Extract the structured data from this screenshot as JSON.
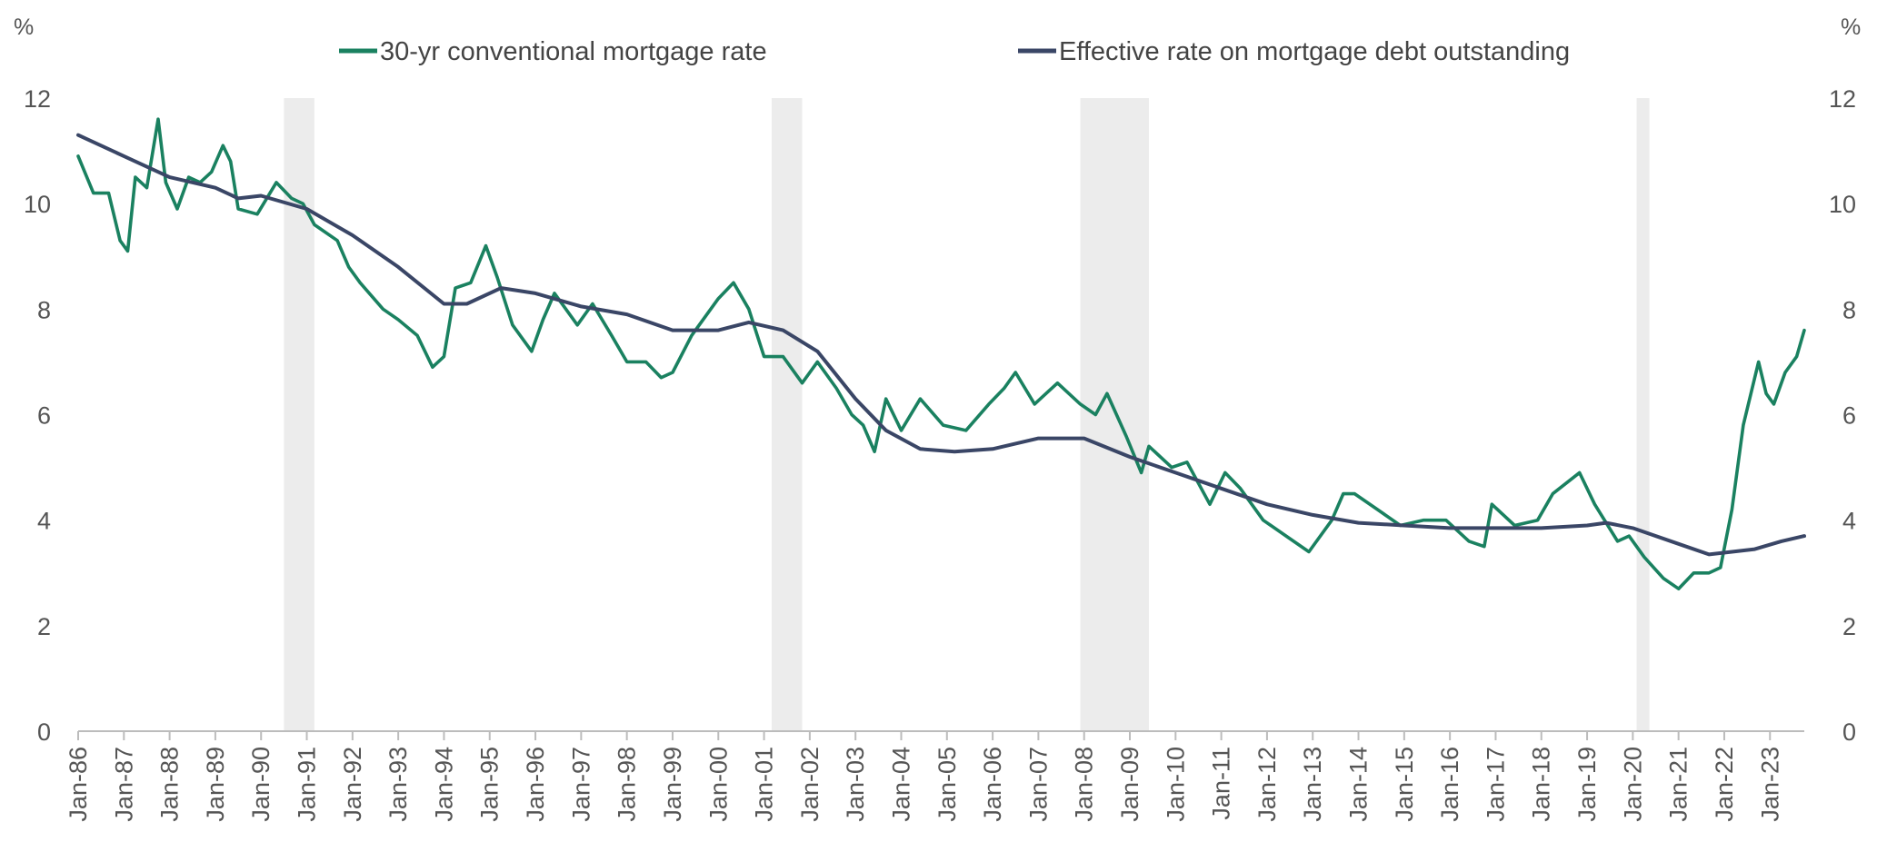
{
  "chart_data": {
    "type": "line",
    "title": "",
    "xlabel": "",
    "left_axis_unit": "%",
    "right_axis_unit": "%",
    "ylim": [
      0,
      12
    ],
    "y_ticks": [
      "0",
      "2",
      "4",
      "6",
      "8",
      "10",
      "12"
    ],
    "x_range": [
      "1986-01",
      "2023-10"
    ],
    "x_tick_labels": [
      "Jan-86",
      "Jan-87",
      "Jan-88",
      "Jan-89",
      "Jan-90",
      "Jan-91",
      "Jan-92",
      "Jan-93",
      "Jan-94",
      "Jan-95",
      "Jan-96",
      "Jan-97",
      "Jan-98",
      "Jan-99",
      "Jan-00",
      "Jan-01",
      "Jan-02",
      "Jan-03",
      "Jan-04",
      "Jan-05",
      "Jan-06",
      "Jan-07",
      "Jan-08",
      "Jan-09",
      "Jan-10",
      "Jan-11",
      "Jan-12",
      "Jan-13",
      "Jan-14",
      "Jan-15",
      "Jan-16",
      "Jan-17",
      "Jan-18",
      "Jan-19",
      "Jan-20",
      "Jan-21",
      "Jan-22",
      "Jan-23"
    ],
    "grid": false,
    "legend_position": "top",
    "shaded_periods": [
      {
        "start": "1990-07",
        "end": "1991-03"
      },
      {
        "start": "2001-03",
        "end": "2001-11"
      },
      {
        "start": "2007-12",
        "end": "2009-06"
      },
      {
        "start": "2020-02",
        "end": "2020-04"
      }
    ],
    "shade_color": "#ececec",
    "series": [
      {
        "name": "30-yr conventional mortgage rate",
        "color": "#1a8160",
        "points": [
          [
            "1986-01",
            10.9
          ],
          [
            "1986-05",
            10.2
          ],
          [
            "1986-09",
            10.2
          ],
          [
            "1986-12",
            9.3
          ],
          [
            "1987-02",
            9.1
          ],
          [
            "1987-04",
            10.5
          ],
          [
            "1987-07",
            10.3
          ],
          [
            "1987-10",
            11.6
          ],
          [
            "1987-12",
            10.4
          ],
          [
            "1988-03",
            9.9
          ],
          [
            "1988-06",
            10.5
          ],
          [
            "1988-09",
            10.4
          ],
          [
            "1988-12",
            10.6
          ],
          [
            "1989-03",
            11.1
          ],
          [
            "1989-05",
            10.8
          ],
          [
            "1989-07",
            9.9
          ],
          [
            "1989-12",
            9.8
          ],
          [
            "1990-05",
            10.4
          ],
          [
            "1990-09",
            10.1
          ],
          [
            "1990-12",
            10.0
          ],
          [
            "1991-03",
            9.6
          ],
          [
            "1991-09",
            9.3
          ],
          [
            "1991-12",
            8.8
          ],
          [
            "1992-03",
            8.5
          ],
          [
            "1992-09",
            8.0
          ],
          [
            "1993-01",
            7.8
          ],
          [
            "1993-06",
            7.5
          ],
          [
            "1993-10",
            6.9
          ],
          [
            "1994-01",
            7.1
          ],
          [
            "1994-04",
            8.4
          ],
          [
            "1994-08",
            8.5
          ],
          [
            "1994-12",
            9.2
          ],
          [
            "1995-03",
            8.6
          ],
          [
            "1995-07",
            7.7
          ],
          [
            "1995-12",
            7.2
          ],
          [
            "1996-03",
            7.8
          ],
          [
            "1996-06",
            8.3
          ],
          [
            "1996-12",
            7.7
          ],
          [
            "1997-04",
            8.1
          ],
          [
            "1997-09",
            7.5
          ],
          [
            "1998-01",
            7.0
          ],
          [
            "1998-06",
            7.0
          ],
          [
            "1998-10",
            6.7
          ],
          [
            "1999-01",
            6.8
          ],
          [
            "1999-06",
            7.5
          ],
          [
            "2000-01",
            8.2
          ],
          [
            "2000-05",
            8.5
          ],
          [
            "2000-09",
            8.0
          ],
          [
            "2001-01",
            7.1
          ],
          [
            "2001-06",
            7.1
          ],
          [
            "2001-11",
            6.6
          ],
          [
            "2002-03",
            7.0
          ],
          [
            "2002-08",
            6.5
          ],
          [
            "2002-12",
            6.0
          ],
          [
            "2003-03",
            5.8
          ],
          [
            "2003-06",
            5.3
          ],
          [
            "2003-09",
            6.3
          ],
          [
            "2004-01",
            5.7
          ],
          [
            "2004-06",
            6.3
          ],
          [
            "2004-12",
            5.8
          ],
          [
            "2005-06",
            5.7
          ],
          [
            "2005-12",
            6.2
          ],
          [
            "2006-04",
            6.5
          ],
          [
            "2006-07",
            6.8
          ],
          [
            "2006-12",
            6.2
          ],
          [
            "2007-06",
            6.6
          ],
          [
            "2007-12",
            6.2
          ],
          [
            "2008-04",
            6.0
          ],
          [
            "2008-07",
            6.4
          ],
          [
            "2008-12",
            5.6
          ],
          [
            "2009-04",
            4.9
          ],
          [
            "2009-06",
            5.4
          ],
          [
            "2009-12",
            5.0
          ],
          [
            "2010-04",
            5.1
          ],
          [
            "2010-10",
            4.3
          ],
          [
            "2011-02",
            4.9
          ],
          [
            "2011-06",
            4.6
          ],
          [
            "2011-12",
            4.0
          ],
          [
            "2012-06",
            3.7
          ],
          [
            "2012-12",
            3.4
          ],
          [
            "2013-06",
            4.0
          ],
          [
            "2013-09",
            4.5
          ],
          [
            "2013-12",
            4.5
          ],
          [
            "2014-06",
            4.2
          ],
          [
            "2014-12",
            3.9
          ],
          [
            "2015-06",
            4.0
          ],
          [
            "2015-12",
            4.0
          ],
          [
            "2016-06",
            3.6
          ],
          [
            "2016-10",
            3.5
          ],
          [
            "2016-12",
            4.3
          ],
          [
            "2017-06",
            3.9
          ],
          [
            "2017-12",
            4.0
          ],
          [
            "2018-04",
            4.5
          ],
          [
            "2018-11",
            4.9
          ],
          [
            "2019-03",
            4.3
          ],
          [
            "2019-09",
            3.6
          ],
          [
            "2019-12",
            3.7
          ],
          [
            "2020-04",
            3.3
          ],
          [
            "2020-09",
            2.9
          ],
          [
            "2021-01",
            2.7
          ],
          [
            "2021-05",
            3.0
          ],
          [
            "2021-09",
            3.0
          ],
          [
            "2021-12",
            3.1
          ],
          [
            "2022-03",
            4.2
          ],
          [
            "2022-06",
            5.8
          ],
          [
            "2022-10",
            7.0
          ],
          [
            "2022-12",
            6.4
          ],
          [
            "2023-02",
            6.2
          ],
          [
            "2023-05",
            6.8
          ],
          [
            "2023-08",
            7.1
          ],
          [
            "2023-10",
            7.6
          ]
        ]
      },
      {
        "name": "Effective rate on mortgage debt outstanding",
        "color": "#3a4666",
        "points": [
          [
            "1986-01",
            11.3
          ],
          [
            "1987-01",
            10.9
          ],
          [
            "1988-01",
            10.5
          ],
          [
            "1989-01",
            10.3
          ],
          [
            "1989-07",
            10.1
          ],
          [
            "1990-01",
            10.15
          ],
          [
            "1991-01",
            9.9
          ],
          [
            "1992-01",
            9.4
          ],
          [
            "1993-01",
            8.8
          ],
          [
            "1994-01",
            8.1
          ],
          [
            "1994-07",
            8.1
          ],
          [
            "1995-04",
            8.4
          ],
          [
            "1996-01",
            8.3
          ],
          [
            "1997-01",
            8.05
          ],
          [
            "1998-01",
            7.9
          ],
          [
            "1999-01",
            7.6
          ],
          [
            "2000-01",
            7.6
          ],
          [
            "2000-09",
            7.75
          ],
          [
            "2001-06",
            7.6
          ],
          [
            "2002-03",
            7.2
          ],
          [
            "2003-01",
            6.3
          ],
          [
            "2003-09",
            5.7
          ],
          [
            "2004-06",
            5.35
          ],
          [
            "2005-03",
            5.3
          ],
          [
            "2006-01",
            5.35
          ],
          [
            "2007-01",
            5.55
          ],
          [
            "2008-01",
            5.55
          ],
          [
            "2009-01",
            5.2
          ],
          [
            "2010-01",
            4.9
          ],
          [
            "2011-01",
            4.6
          ],
          [
            "2012-01",
            4.3
          ],
          [
            "2013-01",
            4.1
          ],
          [
            "2014-01",
            3.95
          ],
          [
            "2015-01",
            3.9
          ],
          [
            "2016-01",
            3.85
          ],
          [
            "2017-01",
            3.85
          ],
          [
            "2018-01",
            3.85
          ],
          [
            "2019-01",
            3.9
          ],
          [
            "2019-06",
            3.95
          ],
          [
            "2020-01",
            3.85
          ],
          [
            "2021-01",
            3.55
          ],
          [
            "2021-09",
            3.35
          ],
          [
            "2022-03",
            3.4
          ],
          [
            "2022-09",
            3.45
          ],
          [
            "2023-04",
            3.6
          ],
          [
            "2023-10",
            3.7
          ]
        ]
      }
    ]
  }
}
